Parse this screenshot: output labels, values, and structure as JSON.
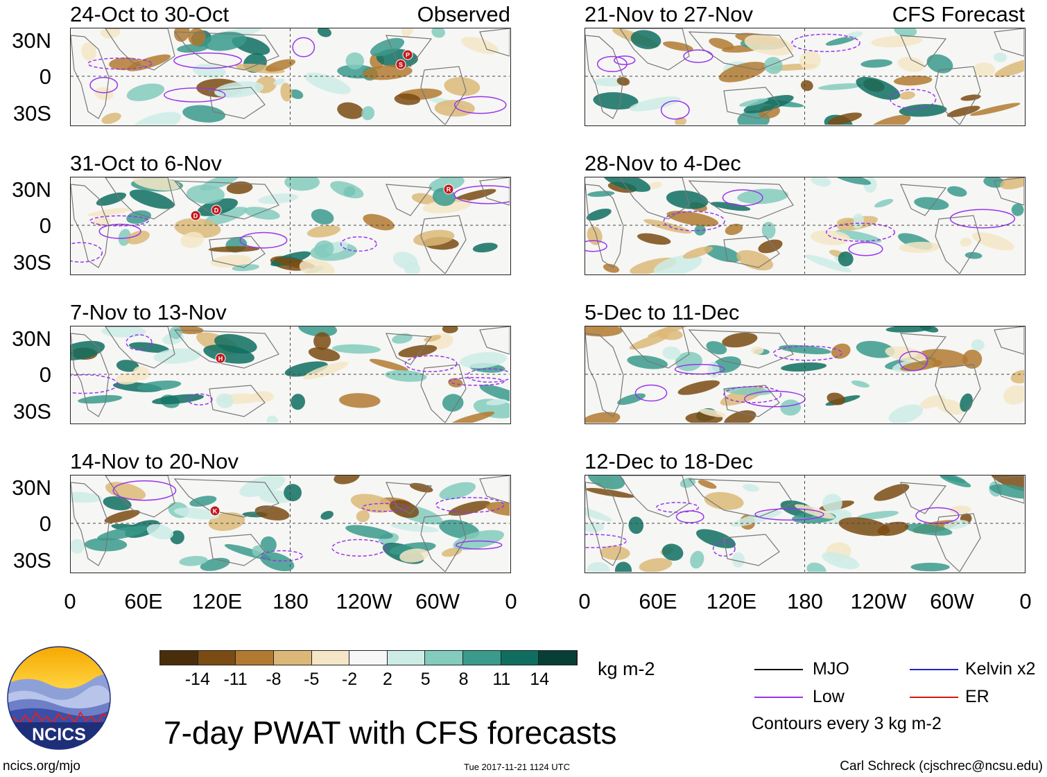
{
  "columns": {
    "left": {
      "tag": "Observed"
    },
    "right": {
      "tag": "CFS Forecast"
    }
  },
  "panels_left": [
    {
      "title": "24-Oct to 30-Oct"
    },
    {
      "title": "31-Oct to 6-Nov"
    },
    {
      "title": "7-Nov to 13-Nov"
    },
    {
      "title": "14-Nov to 20-Nov"
    }
  ],
  "panels_right": [
    {
      "title": "21-Nov to 27-Nov"
    },
    {
      "title": "28-Nov to 4-Dec"
    },
    {
      "title": "5-Dec to 11-Dec"
    },
    {
      "title": "12-Dec to 18-Dec"
    }
  ],
  "y_axis_labels": [
    "30N",
    "0",
    "30S"
  ],
  "x_axis_labels": [
    "0",
    "60E",
    "120E",
    "180",
    "120W",
    "60W",
    "0"
  ],
  "storm_markers": {
    "panel1": [
      "S",
      "P"
    ],
    "panel2": [
      "D",
      "D",
      "R"
    ],
    "panel3": [
      "H"
    ],
    "panel4": [
      "K"
    ]
  },
  "colorbar": {
    "ticks": [
      "-14",
      "-11",
      "-8",
      "-5",
      "-2",
      "2",
      "5",
      "8",
      "11",
      "14"
    ],
    "colors": [
      "#4a2e0c",
      "#7a4b12",
      "#b27a30",
      "#dcb878",
      "#f4e6c6",
      "#f7f7f7",
      "#cdece6",
      "#82cbbd",
      "#3a9a8c",
      "#0f6e60",
      "#073f36"
    ],
    "units": "kg m-2"
  },
  "legend": {
    "items": [
      {
        "label": "MJO",
        "color": "#000000"
      },
      {
        "label": "Kelvin x2",
        "color": "#2222cc"
      },
      {
        "label": "Low",
        "color": "#9933ee"
      },
      {
        "label": "ER",
        "color": "#dd1111"
      }
    ],
    "note": "Contours every 3 kg m-2"
  },
  "logo": {
    "text": "NCICS"
  },
  "main_title": "7-day PWAT with CFS forecasts",
  "footer": {
    "url": "ncics.org/mjo",
    "timestamp": "Tue 2017-11-21 1124 UTC",
    "credit": "Carl Schreck (cjschrec@ncsu.edu)"
  }
}
